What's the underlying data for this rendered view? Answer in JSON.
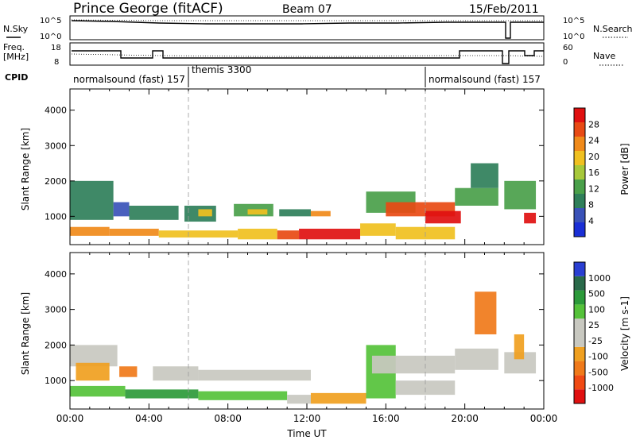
{
  "header": {
    "station": "Prince George (fitACF)",
    "beam": "Beam 07",
    "date": "15/Feb/2011"
  },
  "colors": {
    "power_scale": [
      "#1a2fd6",
      "#3a52b8",
      "#2f7f5a",
      "#4aa04a",
      "#a7c83a",
      "#f0c020",
      "#f08a1a",
      "#e84a14",
      "#e01010"
    ],
    "velocity_scale": [
      "#2a3fd2",
      "#2a6a4a",
      "#2c9a3a",
      "#55c23a",
      "#c8c8c0",
      "#c8c8c0",
      "#f0a020",
      "#f07a1a",
      "#f04a14",
      "#e01010"
    ]
  },
  "noise_panel": {
    "left_label": "N.Sky",
    "left_ticks": [
      "10^5",
      "10^0"
    ],
    "right_ticks": [
      "10^5",
      "10^0"
    ],
    "right_label": "N.Search"
  },
  "freq_panel": {
    "left_label_line1": "Freq.",
    "left_label_line2": "[MHz]",
    "left_ticks": [
      "18",
      "8"
    ],
    "right_ticks": [
      "60",
      "0"
    ],
    "right_label": "Nave"
  },
  "cpid_panel": {
    "label": "CPID",
    "segments": [
      {
        "text": "normalsound (fast) 157",
        "start_hour": 0,
        "end_hour": 6
      },
      {
        "text": "themis 3300",
        "start_hour": 6,
        "end_hour": 18
      },
      {
        "text": "normalsound (fast) 157",
        "start_hour": 18,
        "end_hour": 24
      }
    ]
  },
  "chart_data": [
    {
      "type": "heatmap",
      "quantity": "power",
      "xlabel": "",
      "ylabel": "Slant Range [km]",
      "yticks": [
        "1000",
        "2000",
        "3000",
        "4000"
      ],
      "ylim": [
        200,
        4600
      ],
      "xlim_hours": [
        0,
        24
      ],
      "colorbar_label": "Power [dB]",
      "colorbar_ticks": [
        "4",
        "8",
        "12",
        "16",
        "20",
        "24",
        "28"
      ],
      "colorbar_range": [
        0,
        32
      ],
      "bands": [
        {
          "x": [
            0.0,
            2.0
          ],
          "range_km": [
            450,
            700
          ],
          "level": 22
        },
        {
          "x": [
            2.0,
            4.5
          ],
          "range_km": [
            450,
            650
          ],
          "level": 24
        },
        {
          "x": [
            4.5,
            6.0
          ],
          "range_km": [
            400,
            600
          ],
          "level": 20
        },
        {
          "x": [
            6.0,
            8.5
          ],
          "range_km": [
            400,
            600
          ],
          "level": 18
        },
        {
          "x": [
            8.5,
            10.5
          ],
          "range_km": [
            350,
            650
          ],
          "level": 20
        },
        {
          "x": [
            10.5,
            11.6
          ],
          "range_km": [
            350,
            600
          ],
          "level": 26
        },
        {
          "x": [
            11.6,
            14.7
          ],
          "range_km": [
            350,
            650
          ],
          "level": 29
        },
        {
          "x": [
            14.7,
            16.5
          ],
          "range_km": [
            450,
            800
          ],
          "level": 20
        },
        {
          "x": [
            16.5,
            19.5
          ],
          "range_km": [
            350,
            700
          ],
          "level": 18
        },
        {
          "x": [
            0.0,
            2.2
          ],
          "range_km": [
            900,
            2000
          ],
          "level": 10
        },
        {
          "x": [
            2.2,
            3.0
          ],
          "range_km": [
            1000,
            1400
          ],
          "level": 6
        },
        {
          "x": [
            3.0,
            5.5
          ],
          "range_km": [
            900,
            1300
          ],
          "level": 9
        },
        {
          "x": [
            5.8,
            7.4
          ],
          "range_km": [
            850,
            1300
          ],
          "level": 10
        },
        {
          "x": [
            6.5,
            7.2
          ],
          "range_km": [
            1000,
            1200
          ],
          "level": 18
        },
        {
          "x": [
            8.3,
            10.3
          ],
          "range_km": [
            1000,
            1350
          ],
          "level": 12
        },
        {
          "x": [
            9.0,
            10.0
          ],
          "range_km": [
            1050,
            1200
          ],
          "level": 20
        },
        {
          "x": [
            10.6,
            12.2
          ],
          "range_km": [
            1000,
            1200
          ],
          "level": 8
        },
        {
          "x": [
            12.2,
            13.2
          ],
          "range_km": [
            1000,
            1150
          ],
          "level": 22
        },
        {
          "x": [
            15.0,
            17.5
          ],
          "range_km": [
            1100,
            1700
          ],
          "level": 14
        },
        {
          "x": [
            16.0,
            19.5
          ],
          "range_km": [
            1000,
            1400
          ],
          "level": 27
        },
        {
          "x": [
            18.0,
            19.8
          ],
          "range_km": [
            800,
            1150
          ],
          "level": 30
        },
        {
          "x": [
            19.5,
            21.7
          ],
          "range_km": [
            1300,
            1800
          ],
          "level": 14
        },
        {
          "x": [
            20.3,
            21.7
          ],
          "range_km": [
            1800,
            2500
          ],
          "level": 10
        },
        {
          "x": [
            22.0,
            23.6
          ],
          "range_km": [
            1200,
            2000
          ],
          "level": 12
        },
        {
          "x": [
            23.0,
            23.6
          ],
          "range_km": [
            800,
            1100
          ],
          "level": 30
        }
      ]
    },
    {
      "type": "heatmap",
      "quantity": "velocity",
      "xlabel": "Time UT",
      "ylabel": "Slant Range [km]",
      "yticks": [
        "1000",
        "2000",
        "3000",
        "4000"
      ],
      "ylim": [
        200,
        4600
      ],
      "xlim_hours": [
        0,
        24
      ],
      "xticks": [
        "00:00",
        "04:00",
        "08:00",
        "12:00",
        "16:00",
        "20:00",
        "00:00"
      ],
      "colorbar_label": "Velocity [m s-1]",
      "colorbar_ticks": [
        "1000",
        "500",
        "100",
        "25",
        "-25",
        "-100",
        "-500",
        "-1000"
      ],
      "bands": [
        {
          "x": [
            0.0,
            2.4
          ],
          "range_km": [
            1400,
            2000
          ],
          "color_index": 4
        },
        {
          "x": [
            0.3,
            2.0
          ],
          "range_km": [
            1000,
            1500
          ],
          "color_index": 6
        },
        {
          "x": [
            2.5,
            3.4
          ],
          "range_km": [
            1100,
            1400
          ],
          "color_index": 7
        },
        {
          "x": [
            0.0,
            2.8
          ],
          "range_km": [
            550,
            850
          ],
          "color_index": 3
        },
        {
          "x": [
            2.8,
            6.5
          ],
          "range_km": [
            500,
            750
          ],
          "color_index": 2
        },
        {
          "x": [
            6.5,
            11.0
          ],
          "range_km": [
            450,
            700
          ],
          "color_index": 3
        },
        {
          "x": [
            4.2,
            6.5
          ],
          "range_km": [
            1000,
            1400
          ],
          "color_index": 4
        },
        {
          "x": [
            6.5,
            12.2
          ],
          "range_km": [
            1000,
            1300
          ],
          "color_index": 4
        },
        {
          "x": [
            11.0,
            12.2
          ],
          "range_km": [
            350,
            600
          ],
          "color_index": 4
        },
        {
          "x": [
            12.2,
            15.0
          ],
          "range_km": [
            350,
            650
          ],
          "color_index": 6
        },
        {
          "x": [
            15.0,
            16.5
          ],
          "range_km": [
            500,
            2000
          ],
          "color_index": 3
        },
        {
          "x": [
            15.3,
            19.5
          ],
          "range_km": [
            1200,
            1700
          ],
          "color_index": 4
        },
        {
          "x": [
            16.5,
            19.5
          ],
          "range_km": [
            600,
            1000
          ],
          "color_index": 4
        },
        {
          "x": [
            19.5,
            21.7
          ],
          "range_km": [
            1300,
            1900
          ],
          "color_index": 4
        },
        {
          "x": [
            20.5,
            21.6
          ],
          "range_km": [
            2300,
            3500
          ],
          "color_index": 7
        },
        {
          "x": [
            22.0,
            23.6
          ],
          "range_km": [
            1200,
            1800
          ],
          "color_index": 4
        },
        {
          "x": [
            22.5,
            23.0
          ],
          "range_km": [
            1600,
            2300
          ],
          "color_index": 6
        }
      ]
    }
  ]
}
